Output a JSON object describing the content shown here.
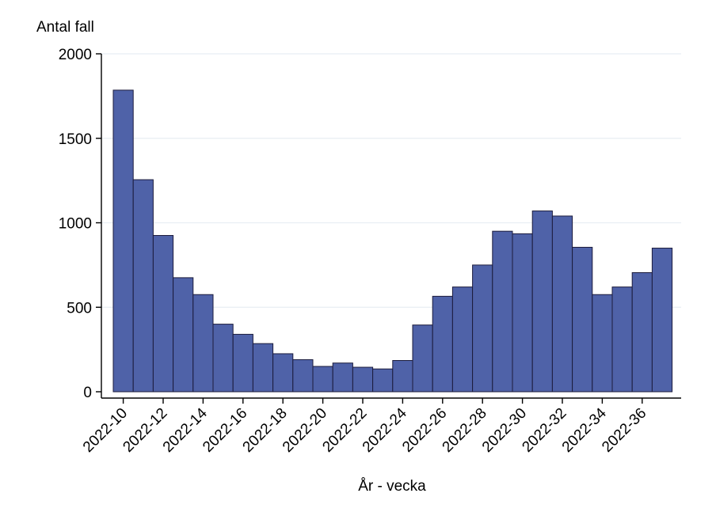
{
  "chart_data": {
    "type": "bar",
    "title": "",
    "ylabel": "Antal fall",
    "xlabel": "År - vecka",
    "ylim": [
      0,
      2000
    ],
    "yticks": [
      0,
      500,
      1000,
      1500,
      2000
    ],
    "grid": true,
    "categories": [
      "2022-10",
      "2022-11",
      "2022-12",
      "2022-13",
      "2022-14",
      "2022-15",
      "2022-16",
      "2022-17",
      "2022-18",
      "2022-19",
      "2022-20",
      "2022-21",
      "2022-22",
      "2022-23",
      "2022-24",
      "2022-25",
      "2022-26",
      "2022-27",
      "2022-28",
      "2022-29",
      "2022-30",
      "2022-31",
      "2022-32",
      "2022-33",
      "2022-34",
      "2022-35",
      "2022-36",
      "2022-37"
    ],
    "tick_labels": [
      "2022-10",
      "2022-12",
      "2022-14",
      "2022-16",
      "2022-18",
      "2022-20",
      "2022-22",
      "2022-24",
      "2022-26",
      "2022-28",
      "2022-30",
      "2022-32",
      "2022-34",
      "2022-36"
    ],
    "values": [
      1785,
      1255,
      925,
      675,
      575,
      400,
      340,
      285,
      225,
      190,
      150,
      170,
      145,
      135,
      185,
      395,
      565,
      620,
      750,
      950,
      935,
      1070,
      1040,
      855,
      575,
      620,
      705,
      850
    ],
    "bar_color": "#4f62a8",
    "bar_edge": "#1c1c3c",
    "grid_color": "#e8eef3"
  }
}
